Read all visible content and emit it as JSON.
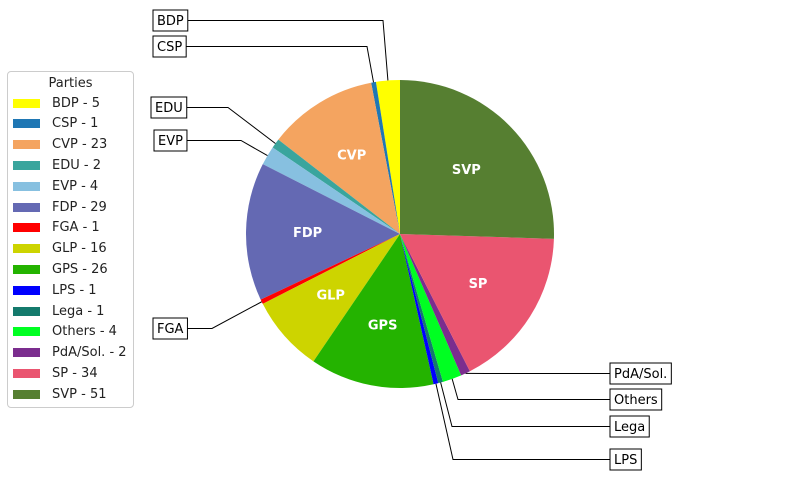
{
  "chart_data": {
    "type": "pie",
    "legend_title": "Parties",
    "legend_position": "left",
    "slices": [
      {
        "label": "BDP",
        "legend": "BDP - 5",
        "value": 5,
        "color": "#ffff00"
      },
      {
        "label": "CSP",
        "legend": "CSP - 1",
        "value": 1,
        "color": "#1f77b4"
      },
      {
        "label": "CVP",
        "legend": "CVP - 23",
        "value": 23,
        "color": "#f4a460"
      },
      {
        "label": "EDU",
        "legend": "EDU - 2",
        "value": 2,
        "color": "#3aa59d"
      },
      {
        "label": "EVP",
        "legend": "EVP - 4",
        "value": 4,
        "color": "#87c0e0"
      },
      {
        "label": "FDP",
        "legend": "FDP - 29",
        "value": 29,
        "color": "#6469b3"
      },
      {
        "label": "FGA",
        "legend": "FGA - 1",
        "value": 1,
        "color": "#ff0000"
      },
      {
        "label": "GLP",
        "legend": "GLP - 16",
        "value": 16,
        "color": "#cdd400"
      },
      {
        "label": "GPS",
        "legend": "GPS - 26",
        "value": 26,
        "color": "#24b300"
      },
      {
        "label": "LPS",
        "legend": "LPS - 1",
        "value": 1,
        "color": "#0000ff"
      },
      {
        "label": "Lega",
        "legend": "Lega - 1",
        "value": 1,
        "color": "#147a6c"
      },
      {
        "label": "Others",
        "legend": "Others - 4",
        "value": 4,
        "color": "#00ff22"
      },
      {
        "label": "PdA/Sol.",
        "legend": "PdA/Sol. - 2",
        "value": 2,
        "color": "#7b2d8e"
      },
      {
        "label": "SP",
        "legend": "SP - 34",
        "value": 34,
        "color": "#ea5570"
      },
      {
        "label": "SVP",
        "legend": "SVP - 51",
        "value": 51,
        "color": "#567f31"
      }
    ],
    "inside_labels": [
      "SVP",
      "SP",
      "GPS",
      "GLP",
      "FDP",
      "CVP"
    ],
    "callout_labels": [
      "BDP",
      "CSP",
      "EDU",
      "EVP",
      "FGA",
      "PdA/Sol.",
      "Others",
      "Lega",
      "LPS"
    ]
  }
}
